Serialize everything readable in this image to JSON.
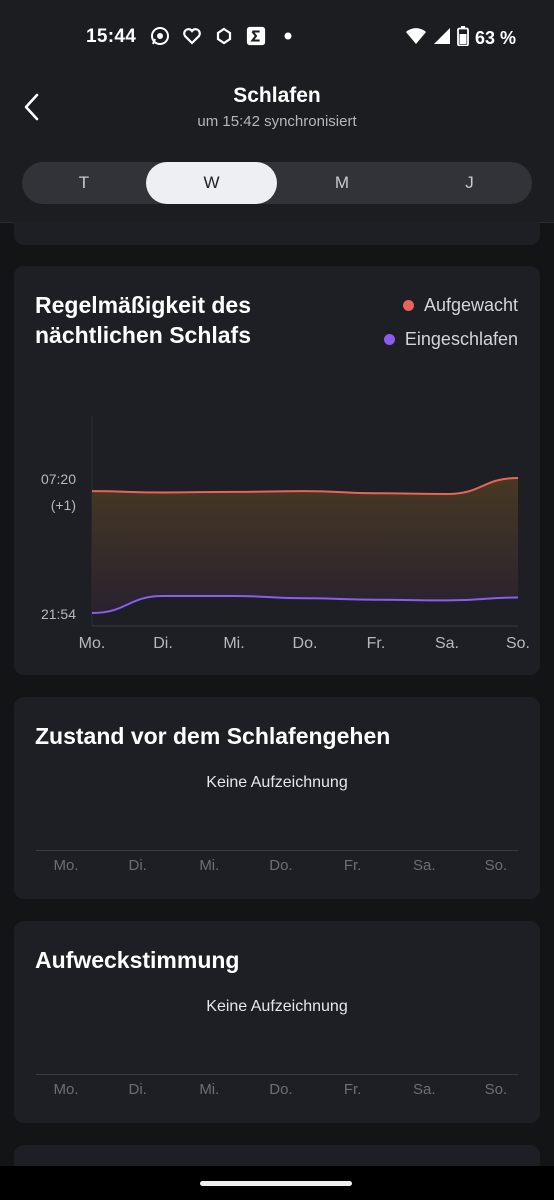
{
  "status_bar": {
    "time": "15:44",
    "battery": "63 %",
    "notification_icons": [
      "whatsapp-icon",
      "heart-icon",
      "app-icon",
      "sigma-icon",
      "dot-icon"
    ]
  },
  "header": {
    "title": "Schlafen",
    "subtitle": "um 15:42 synchronisiert"
  },
  "tabs": [
    {
      "label": "T",
      "active": false
    },
    {
      "label": "W",
      "active": true
    },
    {
      "label": "M",
      "active": false
    },
    {
      "label": "J",
      "active": false
    }
  ],
  "regularity": {
    "title_line1": "Regelmäßigkeit des",
    "title_line2": "nächtlichen Schlafs",
    "legend_wake": "Aufgewacht",
    "legend_sleep": "Eingeschlafen",
    "y_top_label": "07:20",
    "y_top_sub": "(+1)",
    "y_bottom_label": "21:54"
  },
  "chart_data": {
    "type": "line",
    "categories": [
      "Mo.",
      "Di.",
      "Mi.",
      "Do.",
      "Fr.",
      "Sa.",
      "So."
    ],
    "series": [
      {
        "name": "Aufgewacht",
        "values": [
          7.15,
          7.13,
          7.14,
          7.15,
          7.12,
          7.11,
          7.33
        ]
      },
      {
        "name": "Eingeschlafen",
        "values": [
          21.9,
          22.13,
          22.13,
          22.1,
          22.08,
          22.07,
          22.11
        ]
      }
    ],
    "y_labels": [
      "07:20 (+1)",
      "21:54"
    ],
    "colors": {
      "wake": "#e8645a",
      "sleep": "#8a5cf0"
    }
  },
  "state_before_sleep": {
    "title": "Zustand vor dem Schlafengehen",
    "empty_text": "Keine Aufzeichnung",
    "days": [
      "Mo.",
      "Di.",
      "Mi.",
      "Do.",
      "Fr.",
      "Sa.",
      "So."
    ]
  },
  "wake_mood": {
    "title": "Aufweckstimmung",
    "empty_text": "Keine Aufzeichnung",
    "days": [
      "Mo.",
      "Di.",
      "Mi.",
      "Do.",
      "Fr.",
      "Sa.",
      "So."
    ]
  }
}
